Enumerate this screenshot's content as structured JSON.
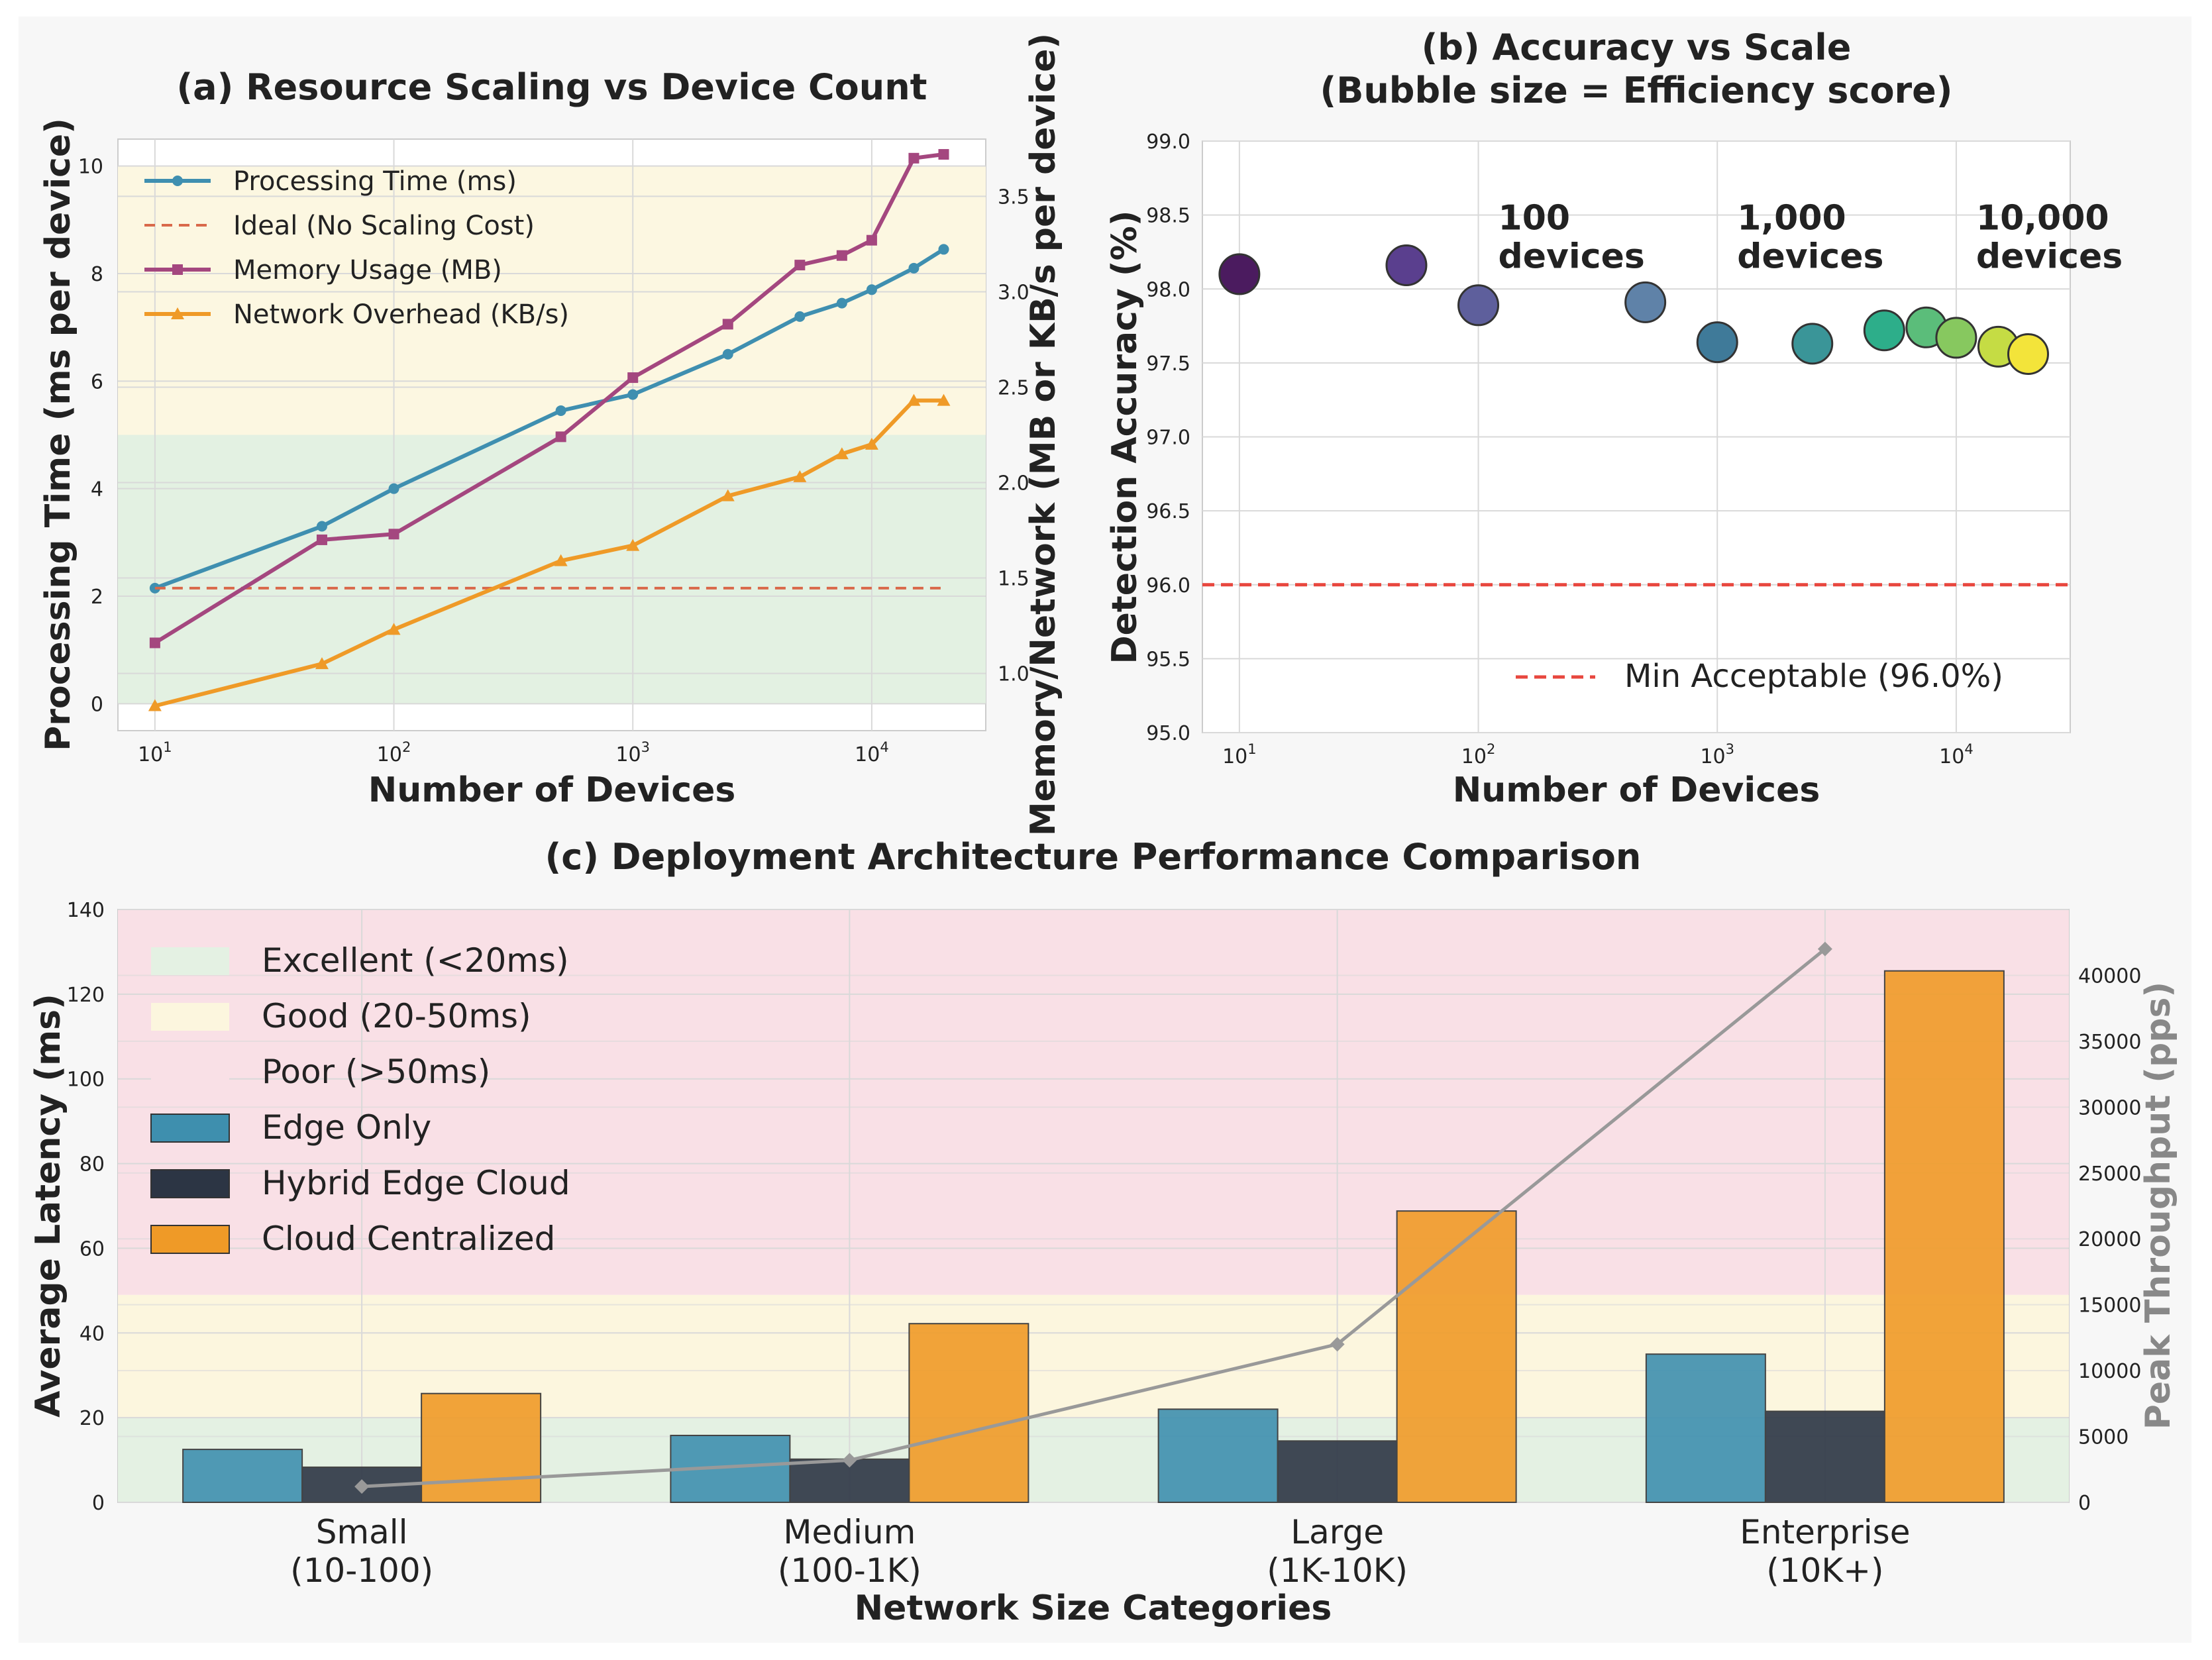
{
  "chart_data": [
    {
      "id": "a",
      "type": "line",
      "title": "(a) Resource Scaling vs Device Count",
      "xlabel": "Number of Devices",
      "ylabel": "Processing Time (ms per device)",
      "y2label": "Memory/Network (MB or KB/s per device)",
      "xscale": "log",
      "xlim": [
        7,
        30000
      ],
      "ylim": [
        -0.5,
        10.5
      ],
      "y2lim": [
        0.7,
        3.8
      ],
      "xticks": [
        {
          "v": 10,
          "exp": "1"
        },
        {
          "v": 100,
          "exp": "2"
        },
        {
          "v": 1000,
          "exp": "3"
        },
        {
          "v": 10000,
          "exp": "4"
        }
      ],
      "yticks": [
        0,
        2,
        4,
        6,
        8,
        10
      ],
      "y2ticks": [
        "1.0",
        "1.5",
        "2.0",
        "2.5",
        "3.0",
        "3.5"
      ],
      "grid": true,
      "legend_position": "top-left",
      "bands": [
        {
          "from": 0,
          "to": 5,
          "color": "#e3f1e2"
        },
        {
          "from": 5,
          "to": 10,
          "color": "#fcf7e1"
        }
      ],
      "series": [
        {
          "name": "Processing Time (ms)",
          "axis": "left",
          "color": "#3f8fb0",
          "marker": "circle",
          "x": [
            10,
            50,
            100,
            500,
            1000,
            2500,
            5000,
            7500,
            10000,
            15000,
            20000
          ],
          "y": [
            2.15,
            3.3,
            4.0,
            5.45,
            5.75,
            6.5,
            7.2,
            7.45,
            7.7,
            8.1,
            8.45
          ]
        },
        {
          "name": "Ideal (No Scaling Cost)",
          "axis": "left",
          "color": "#d9694a",
          "dashed": true,
          "x": [
            10,
            20000
          ],
          "y": [
            2.15,
            2.15
          ]
        },
        {
          "name": "Memory Usage (MB)",
          "axis": "right",
          "color": "#a4477f",
          "marker": "square",
          "x": [
            10,
            50,
            100,
            500,
            1000,
            2500,
            5000,
            7500,
            10000,
            15000,
            20000
          ],
          "y": [
            1.16,
            1.7,
            1.73,
            2.24,
            2.55,
            2.83,
            3.14,
            3.19,
            3.27,
            3.7,
            3.72
          ]
        },
        {
          "name": "Network Overhead (KB/s)",
          "axis": "right",
          "color": "#ef9a27",
          "marker": "triangle",
          "x": [
            10,
            50,
            100,
            500,
            1000,
            2500,
            5000,
            7500,
            10000,
            15000,
            20000
          ],
          "y": [
            0.83,
            1.05,
            1.23,
            1.59,
            1.67,
            1.93,
            2.03,
            2.15,
            2.2,
            2.43,
            2.43
          ]
        }
      ]
    },
    {
      "id": "b",
      "type": "scatter",
      "title": "(b) Accuracy vs Scale",
      "subtitle": "(Bubble size = Efficiency score)",
      "xlabel": "Number of Devices",
      "ylabel": "Detection Accuracy (%)",
      "xscale": "log",
      "xlim": [
        7,
        30000
      ],
      "ylim": [
        95.0,
        99.0
      ],
      "xticks": [
        {
          "v": 10,
          "exp": "1"
        },
        {
          "v": 100,
          "exp": "2"
        },
        {
          "v": 1000,
          "exp": "3"
        },
        {
          "v": 10000,
          "exp": "4"
        }
      ],
      "yticks": [
        "95.0",
        "95.5",
        "96.0",
        "96.5",
        "97.0",
        "97.5",
        "98.0",
        "98.5",
        "99.0"
      ],
      "grid": true,
      "legend_position": "lower-right",
      "reference_line": {
        "y": 96.0,
        "label": "Min Acceptable (96.0%)",
        "color": "#e8473e"
      },
      "points": [
        {
          "x": 10,
          "y": 98.1,
          "color": "#4b1b5f"
        },
        {
          "x": 50,
          "y": 98.16,
          "color": "#5a3f8e"
        },
        {
          "x": 100,
          "y": 97.89,
          "color": "#5e5f9c"
        },
        {
          "x": 500,
          "y": 97.91,
          "color": "#5f82a8"
        },
        {
          "x": 1000,
          "y": 97.64,
          "color": "#3f7a99"
        },
        {
          "x": 2500,
          "y": 97.63,
          "color": "#3a9598"
        },
        {
          "x": 5000,
          "y": 97.72,
          "color": "#2dae8a"
        },
        {
          "x": 7500,
          "y": 97.74,
          "color": "#5bbd7a"
        },
        {
          "x": 10000,
          "y": 97.67,
          "color": "#87c85f"
        },
        {
          "x": 15000,
          "y": 97.61,
          "color": "#c5dc44"
        },
        {
          "x": 20000,
          "y": 97.56,
          "color": "#f3e43a"
        }
      ],
      "annotations": [
        {
          "x": 100,
          "y": 98.2,
          "lines": [
            "100",
            "devices"
          ]
        },
        {
          "x": 1000,
          "y": 98.2,
          "lines": [
            "1,000",
            "devices"
          ]
        },
        {
          "x": 10000,
          "y": 98.2,
          "lines": [
            "10,000",
            "devices"
          ]
        }
      ]
    },
    {
      "id": "c",
      "type": "bar",
      "title": "(c) Deployment Architecture Performance Comparison",
      "xlabel": "Network Size Categories",
      "ylabel": "Average Latency (ms)",
      "y2label": "Peak Throughput (pps)",
      "categories": [
        [
          "Small",
          "(10-100)"
        ],
        [
          "Medium",
          "(100-1K)"
        ],
        [
          "Large",
          "(1K-10K)"
        ],
        [
          "Enterprise",
          "(10K+)"
        ]
      ],
      "ylim": [
        0,
        140
      ],
      "y2lim": [
        0,
        45000
      ],
      "yticks": [
        0,
        20,
        40,
        60,
        80,
        100,
        120,
        140
      ],
      "y2ticks": [
        0,
        5000,
        10000,
        15000,
        20000,
        25000,
        30000,
        35000,
        40000
      ],
      "grid": true,
      "legend_position": "top-left",
      "bands": [
        {
          "name": "Excellent (<20ms)",
          "from": 0,
          "to": 20,
          "color": "#e4f1e3"
        },
        {
          "name": "Good (20-50ms)",
          "from": 20,
          "to": 49,
          "color": "#fcf6de"
        },
        {
          "name": "Poor (>50ms)",
          "from": 49,
          "to": 140,
          "color": "#f9e0e6"
        }
      ],
      "series": [
        {
          "name": "Edge Only",
          "color": "#3e8fae",
          "values": [
            12.5,
            15.8,
            22,
            35
          ]
        },
        {
          "name": "Hybrid Edge Cloud",
          "color": "#2c3544",
          "values": [
            8.3,
            10.2,
            14.5,
            21.5
          ]
        },
        {
          "name": "Cloud Centralized",
          "color": "#ef9a27",
          "values": [
            25.7,
            42.2,
            68.8,
            125.5
          ]
        }
      ],
      "throughput": {
        "color": "#999999",
        "values": [
          1200,
          3200,
          12000,
          42000
        ]
      }
    }
  ]
}
